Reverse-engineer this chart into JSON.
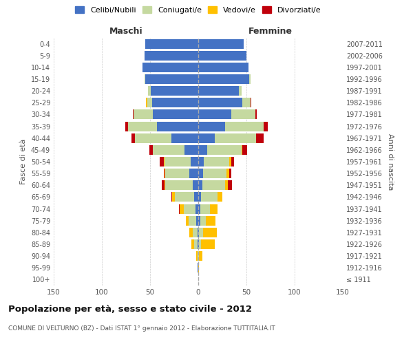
{
  "age_groups": [
    "100+",
    "95-99",
    "90-94",
    "85-89",
    "80-84",
    "75-79",
    "70-74",
    "65-69",
    "60-64",
    "55-59",
    "50-54",
    "45-49",
    "40-44",
    "35-39",
    "30-34",
    "25-29",
    "20-24",
    "15-19",
    "10-14",
    "5-9",
    "0-4"
  ],
  "birth_years": [
    "≤ 1911",
    "1912-1916",
    "1917-1921",
    "1922-1926",
    "1927-1931",
    "1932-1936",
    "1937-1941",
    "1942-1946",
    "1947-1951",
    "1952-1956",
    "1957-1961",
    "1962-1966",
    "1967-1971",
    "1972-1976",
    "1977-1981",
    "1982-1986",
    "1987-1991",
    "1992-1996",
    "1997-2001",
    "2002-2006",
    "2007-2011"
  ],
  "maschi": {
    "celibi": [
      0,
      1,
      0,
      1,
      1,
      2,
      3,
      4,
      6,
      9,
      8,
      14,
      28,
      43,
      47,
      48,
      49,
      55,
      58,
      56,
      55
    ],
    "coniugati": [
      0,
      0,
      1,
      3,
      5,
      8,
      12,
      20,
      28,
      25,
      27,
      33,
      38,
      30,
      20,
      5,
      3,
      1,
      0,
      0,
      0
    ],
    "vedovi": [
      0,
      0,
      1,
      3,
      3,
      3,
      4,
      3,
      1,
      1,
      1,
      0,
      0,
      0,
      0,
      1,
      0,
      0,
      0,
      0,
      0
    ],
    "divorziati": [
      0,
      0,
      0,
      0,
      0,
      0,
      1,
      1,
      3,
      1,
      4,
      4,
      3,
      3,
      1,
      0,
      0,
      0,
      0,
      0,
      0
    ]
  },
  "femmine": {
    "nubili": [
      0,
      0,
      0,
      1,
      1,
      2,
      2,
      3,
      4,
      5,
      6,
      9,
      17,
      28,
      34,
      46,
      42,
      53,
      52,
      50,
      47
    ],
    "coniugate": [
      0,
      0,
      1,
      2,
      4,
      6,
      10,
      17,
      24,
      24,
      26,
      36,
      43,
      40,
      25,
      8,
      3,
      1,
      0,
      0,
      0
    ],
    "vedove": [
      0,
      1,
      3,
      14,
      14,
      10,
      8,
      5,
      3,
      3,
      2,
      1,
      0,
      0,
      0,
      0,
      0,
      0,
      0,
      0,
      0
    ],
    "divorziate": [
      0,
      0,
      0,
      0,
      0,
      0,
      0,
      0,
      4,
      2,
      3,
      5,
      8,
      4,
      2,
      1,
      0,
      0,
      0,
      0,
      0
    ]
  },
  "colors": {
    "celibi_nubili": "#4472c4",
    "coniugati": "#c5d9a0",
    "vedovi": "#ffc000",
    "divorziati": "#c0000b"
  },
  "xlim": 150,
  "title": "Popolazione per età, sesso e stato civile - 2012",
  "subtitle": "COMUNE DI VELTURNO (BZ) - Dati ISTAT 1° gennaio 2012 - Elaborazione TUTTITALIA.IT",
  "ylabel": "Fasce di età",
  "ylabel_right": "Anni di nascita",
  "legend_labels": [
    "Celibi/Nubili",
    "Coniugati/e",
    "Vedovi/e",
    "Divorziati/e"
  ],
  "maschi_label": "Maschi",
  "femmine_label": "Femmine"
}
